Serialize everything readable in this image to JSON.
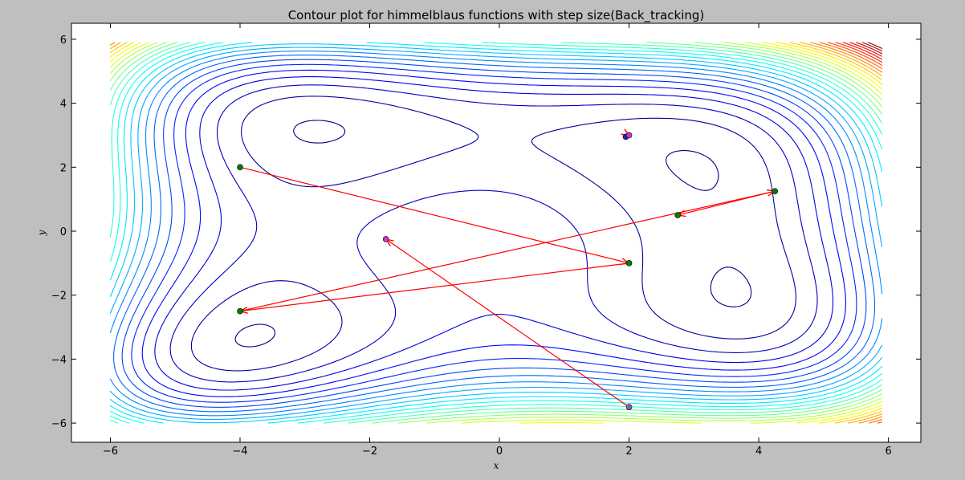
{
  "chart_data": {
    "type": "contour",
    "title": "Contour plot for himmelblaus functions with step size(Back_tracking)",
    "xlabel": "x",
    "ylabel": "y",
    "xlim": [
      -6.6,
      6.5
    ],
    "ylim": [
      -6.6,
      6.5
    ],
    "xticks": [
      -6,
      -4,
      -2,
      0,
      2,
      4,
      6
    ],
    "yticks": [
      -6,
      -4,
      -2,
      0,
      2,
      4,
      6
    ],
    "xtick_labels": [
      "−6",
      "−4",
      "−2",
      "0",
      "2",
      "4",
      "6"
    ],
    "ytick_labels": [
      "−6",
      "−4",
      "−2",
      "0",
      "2",
      "4",
      "6"
    ],
    "grid": false,
    "contour": {
      "function": "himmelblau",
      "x_range": [
        -6,
        5.9
      ],
      "y_range": [
        -6,
        5.9
      ],
      "levels_start": 5,
      "levels_step": 60,
      "levels_count": 32,
      "colormap": [
        "#00007f",
        "#0000ff",
        "#007fff",
        "#00ffff",
        "#7fff7f",
        "#ffff00",
        "#ff7f00",
        "#ff0000",
        "#7f0000"
      ]
    },
    "path": {
      "color": "#ff0000",
      "steps": [
        {
          "from": [
            -4,
            2
          ],
          "to": [
            2,
            -1
          ]
        },
        {
          "from": [
            2,
            -1
          ],
          "to": [
            -4,
            -2.5
          ]
        },
        {
          "from": [
            -4,
            -2.5
          ],
          "to": [
            4.25,
            1.25
          ]
        },
        {
          "from": [
            4.25,
            1.25
          ],
          "to": [
            2.75,
            0.5
          ]
        },
        {
          "from": [
            2.0,
            -5.5
          ],
          "to": [
            -1.75,
            -0.25
          ]
        },
        {
          "from": [
            1.95,
            3.05
          ],
          "to": [
            2.0,
            2.98
          ]
        }
      ]
    },
    "points": [
      {
        "x": -4,
        "y": 2,
        "color": "#008000"
      },
      {
        "x": 2,
        "y": -1,
        "color": "#008000"
      },
      {
        "x": -4,
        "y": -2.5,
        "color": "#008000"
      },
      {
        "x": 4.25,
        "y": 1.25,
        "color": "#008000"
      },
      {
        "x": 2.75,
        "y": 0.5,
        "color": "#008000"
      },
      {
        "x": 2.0,
        "y": -5.5,
        "color": "#9b59b6"
      },
      {
        "x": -1.75,
        "y": -0.25,
        "color": "#cc33cc"
      },
      {
        "x": 1.95,
        "y": 2.95,
        "color": "#1f1fbf"
      },
      {
        "x": 2.0,
        "y": 3.0,
        "color": "#cc33cc"
      }
    ]
  }
}
